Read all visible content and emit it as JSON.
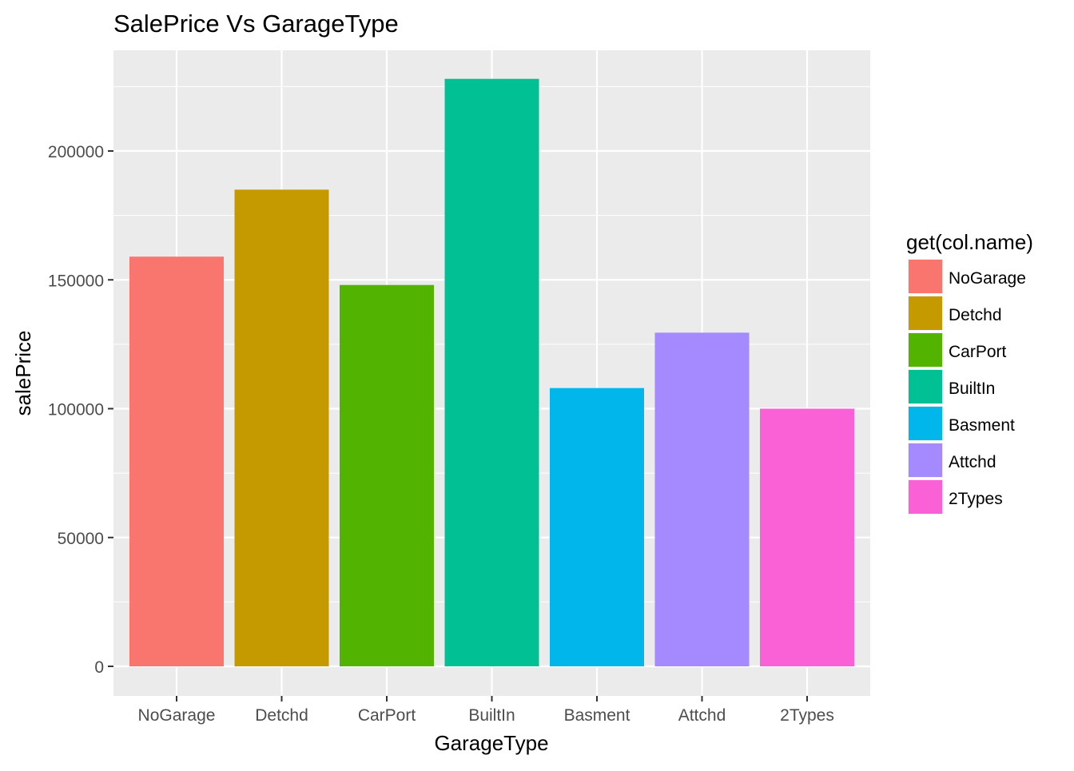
{
  "chart_data": {
    "type": "bar",
    "title": "SalePrice Vs GarageType",
    "xlabel": "GarageType",
    "ylabel": "salePrice",
    "categories": [
      "NoGarage",
      "Detchd",
      "CarPort",
      "BuiltIn",
      "Basment",
      "Attchd",
      "2Types"
    ],
    "values": [
      159000,
      185000,
      148000,
      228000,
      108000,
      129500,
      100000
    ],
    "colors": [
      "#F8766D",
      "#C49A00",
      "#53B400",
      "#00C094",
      "#00B6EB",
      "#A58AFF",
      "#FB61D7"
    ],
    "ylim": [
      0,
      240000
    ],
    "y_ticks": [
      0,
      50000,
      100000,
      150000,
      200000
    ],
    "y_tick_labels": [
      "0",
      "50000",
      "100000",
      "150000",
      "200000"
    ],
    "grid": true,
    "panel_background": "#EBEBEB",
    "legend": {
      "title": "get(col.name)",
      "position": "right",
      "entries": [
        "NoGarage",
        "Detchd",
        "CarPort",
        "BuiltIn",
        "Basment",
        "Attchd",
        "2Types"
      ]
    }
  }
}
